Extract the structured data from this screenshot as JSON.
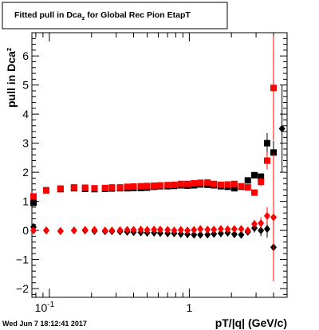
{
  "chart_data": {
    "type": "scatter",
    "title": "Fitted pull in Dca",
    "title_subscript": "z",
    "title_suffix": " for Global Rec Pion EtapT",
    "xlabel": "pT/|q| (GeV/c)",
    "ylabel": "pull in Dca",
    "ylabel_subscript": "z",
    "footer": "Wed Jun  7 18:12:41 2017",
    "x_scale": "log",
    "xlim": [
      0.075,
      5.0
    ],
    "ylim": [
      -2.3,
      6.8
    ],
    "x_ticks": [
      {
        "value": 0.1,
        "base": "10",
        "exp": "-1"
      },
      {
        "value": 1,
        "label": "1"
      }
    ],
    "y_ticks": [
      -2,
      -1,
      0,
      1,
      2,
      3,
      4,
      5,
      6
    ],
    "colors": {
      "red": "#ff0000",
      "black": "#000000"
    },
    "series": [
      {
        "color": "black",
        "marker": "square",
        "points": [
          [
            0.077,
            0.95,
            0
          ],
          [
            0.095,
            1.38,
            0
          ],
          [
            0.12,
            1.42,
            0
          ],
          [
            0.15,
            1.45,
            0
          ],
          [
            0.18,
            1.43,
            0
          ],
          [
            0.21,
            1.42,
            0
          ],
          [
            0.25,
            1.43,
            0
          ],
          [
            0.28,
            1.44,
            0
          ],
          [
            0.32,
            1.45,
            0
          ],
          [
            0.36,
            1.45,
            0
          ],
          [
            0.4,
            1.46,
            0
          ],
          [
            0.45,
            1.46,
            0
          ],
          [
            0.5,
            1.47,
            0
          ],
          [
            0.56,
            1.5,
            0
          ],
          [
            0.62,
            1.52,
            0
          ],
          [
            0.7,
            1.52,
            0
          ],
          [
            0.78,
            1.53,
            0
          ],
          [
            0.87,
            1.55,
            0
          ],
          [
            0.97,
            1.54,
            0
          ],
          [
            1.08,
            1.55,
            0
          ],
          [
            1.2,
            1.58,
            0
          ],
          [
            1.35,
            1.57,
            0
          ],
          [
            1.5,
            1.55,
            0
          ],
          [
            1.68,
            1.52,
            0
          ],
          [
            1.88,
            1.5,
            0
          ],
          [
            2.1,
            1.45,
            0
          ],
          [
            2.35,
            1.5,
            0
          ],
          [
            2.62,
            1.72,
            0.05
          ],
          [
            2.92,
            1.9,
            0.08
          ],
          [
            3.25,
            1.85,
            0.1
          ],
          [
            3.6,
            3.0,
            0.35
          ],
          [
            4.0,
            2.68,
            0.4
          ]
        ]
      },
      {
        "color": "red",
        "marker": "square",
        "points": [
          [
            0.077,
            1.17,
            0
          ],
          [
            0.095,
            1.38,
            0
          ],
          [
            0.12,
            1.44,
            0
          ],
          [
            0.15,
            1.48,
            0
          ],
          [
            0.18,
            1.47,
            0
          ],
          [
            0.21,
            1.45,
            0
          ],
          [
            0.25,
            1.46,
            0
          ],
          [
            0.28,
            1.48,
            0
          ],
          [
            0.32,
            1.48,
            0
          ],
          [
            0.36,
            1.5,
            0
          ],
          [
            0.4,
            1.51,
            0
          ],
          [
            0.45,
            1.52,
            0
          ],
          [
            0.5,
            1.53,
            0
          ],
          [
            0.56,
            1.54,
            0
          ],
          [
            0.62,
            1.55,
            0
          ],
          [
            0.7,
            1.56,
            0
          ],
          [
            0.78,
            1.57,
            0
          ],
          [
            0.87,
            1.6,
            0
          ],
          [
            0.97,
            1.6,
            0
          ],
          [
            1.08,
            1.62,
            0
          ],
          [
            1.2,
            1.64,
            0
          ],
          [
            1.35,
            1.65,
            0
          ],
          [
            1.5,
            1.6,
            0
          ],
          [
            1.68,
            1.57,
            0
          ],
          [
            1.88,
            1.58,
            0
          ],
          [
            2.1,
            1.6,
            0
          ],
          [
            2.35,
            1.52,
            0
          ],
          [
            2.62,
            1.48,
            0.05
          ],
          [
            2.92,
            1.3,
            0.1
          ],
          [
            3.25,
            1.67,
            0.15
          ],
          [
            3.6,
            2.4,
            0.3
          ],
          [
            4.0,
            4.9,
            1.8
          ]
        ]
      },
      {
        "color": "black",
        "marker": "diamond",
        "points": [
          [
            0.077,
            0.12,
            0
          ],
          [
            0.095,
            0.0,
            0
          ],
          [
            0.12,
            -0.02,
            0
          ],
          [
            0.15,
            0.0,
            0
          ],
          [
            0.18,
            0.0,
            0
          ],
          [
            0.21,
            -0.02,
            0
          ],
          [
            0.25,
            -0.03,
            0
          ],
          [
            0.28,
            -0.03,
            0
          ],
          [
            0.32,
            -0.04,
            0
          ],
          [
            0.36,
            -0.05,
            0
          ],
          [
            0.4,
            -0.06,
            0
          ],
          [
            0.45,
            -0.07,
            0
          ],
          [
            0.5,
            -0.08,
            0
          ],
          [
            0.56,
            -0.08,
            0
          ],
          [
            0.62,
            -0.09,
            0
          ],
          [
            0.7,
            -0.1,
            0
          ],
          [
            0.78,
            -0.1,
            0
          ],
          [
            0.87,
            -0.12,
            0
          ],
          [
            0.97,
            -0.13,
            0
          ],
          [
            1.08,
            -0.15,
            0
          ],
          [
            1.2,
            -0.15,
            0
          ],
          [
            1.35,
            -0.14,
            0
          ],
          [
            1.5,
            -0.12,
            0
          ],
          [
            1.68,
            -0.1,
            0
          ],
          [
            1.88,
            -0.08,
            0
          ],
          [
            2.1,
            -0.13,
            0
          ],
          [
            2.35,
            -0.15,
            0
          ],
          [
            2.62,
            -0.05,
            0.1
          ],
          [
            2.92,
            0.08,
            0.15
          ],
          [
            3.25,
            0.0,
            0.2
          ],
          [
            3.6,
            0.05,
            0.3
          ],
          [
            4.0,
            -0.58,
            0.5
          ],
          [
            4.6,
            3.5,
            1.5
          ]
        ]
      },
      {
        "color": "red",
        "marker": "diamond",
        "points": [
          [
            0.077,
            0.0,
            0
          ],
          [
            0.095,
            0.0,
            0
          ],
          [
            0.12,
            -0.02,
            0
          ],
          [
            0.15,
            0.0,
            0
          ],
          [
            0.18,
            0.02,
            0
          ],
          [
            0.21,
            0.02,
            0
          ],
          [
            0.25,
            0.0,
            0
          ],
          [
            0.28,
            0.0,
            0
          ],
          [
            0.32,
            0.01,
            0
          ],
          [
            0.36,
            0.02,
            0
          ],
          [
            0.4,
            0.02,
            0
          ],
          [
            0.45,
            0.03,
            0
          ],
          [
            0.5,
            0.02,
            0
          ],
          [
            0.56,
            0.03,
            0
          ],
          [
            0.62,
            0.03,
            0
          ],
          [
            0.7,
            0.02,
            0
          ],
          [
            0.78,
            0.0,
            0
          ],
          [
            0.87,
            0.02,
            0
          ],
          [
            0.97,
            0.0,
            0
          ],
          [
            1.08,
            0.02,
            0
          ],
          [
            1.2,
            0.05,
            0
          ],
          [
            1.35,
            0.03,
            0
          ],
          [
            1.5,
            0.03,
            0
          ],
          [
            1.68,
            0.05,
            0
          ],
          [
            1.88,
            0.04,
            0
          ],
          [
            2.1,
            0.05,
            0
          ],
          [
            2.35,
            0.05,
            0
          ],
          [
            2.62,
            0.0,
            0.1
          ],
          [
            2.92,
            0.22,
            0.15
          ],
          [
            3.25,
            0.25,
            0.2
          ],
          [
            3.6,
            0.5,
            0.3
          ],
          [
            4.0,
            0.45,
            2.2
          ]
        ]
      }
    ]
  }
}
